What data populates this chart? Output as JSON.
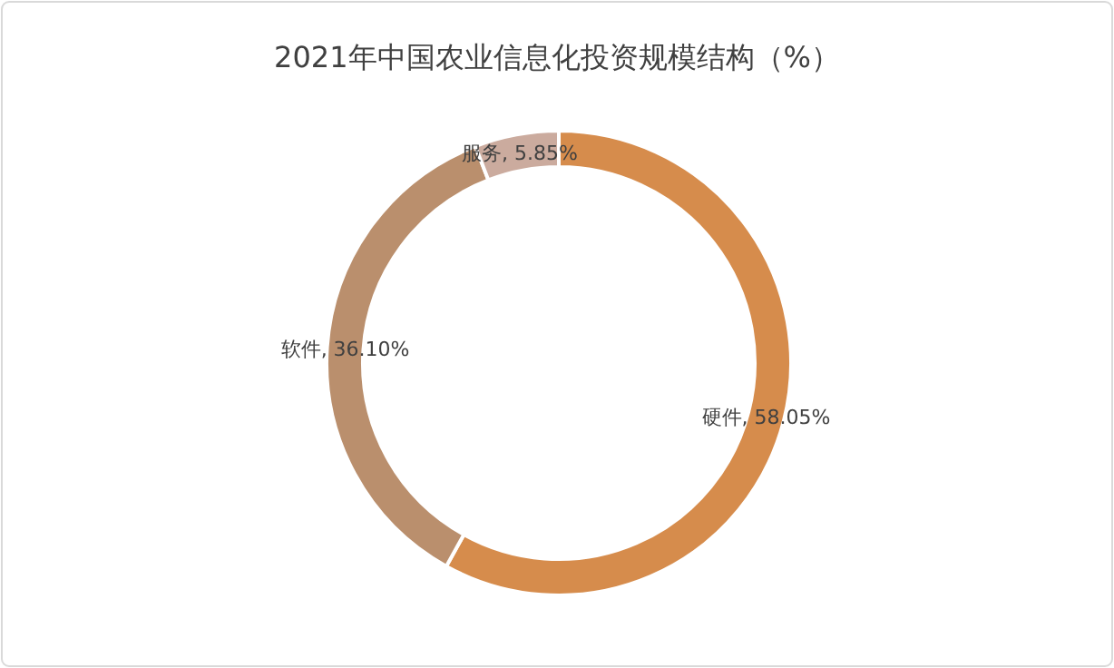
{
  "chart_data": {
    "type": "donut",
    "title": "2021年中国农业信息化投资规模结构（%）",
    "categories": [
      "硬件",
      "软件",
      "服务"
    ],
    "values": [
      58.05,
      36.1,
      5.85
    ],
    "value_labels": [
      "58.05%",
      "36.10%",
      "5.85%"
    ],
    "colors": [
      "#d68c4c",
      "#ba8f6d",
      "#cbab9e"
    ]
  }
}
